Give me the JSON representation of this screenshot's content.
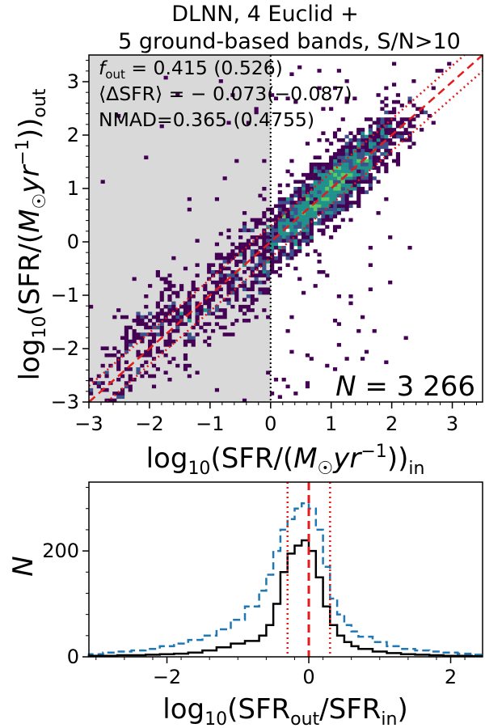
{
  "chart_data": [
    {
      "type": "heatmap",
      "title_line1": "DLNN, 4 Euclid +",
      "title_line2": "5 ground-based bands, S/N>10",
      "xlabel": "log₁₀(SFR/(M☉yr⁻¹))ᵢₙ",
      "ylabel": "log₁₀(SFR/(M☉yr⁻¹))ₒᵤₜ",
      "xlim": [
        -3,
        3.5
      ],
      "ylim": [
        -3,
        3.5
      ],
      "xticks": [
        -3,
        -2,
        -1,
        0,
        1,
        2,
        3
      ],
      "yticks": [
        -3,
        -2,
        -1,
        0,
        1,
        2,
        3
      ],
      "xtick_labels": [
        "−3",
        "−2",
        "−1",
        "0",
        "1",
        "2",
        "3"
      ],
      "ytick_labels": [
        "−3",
        "−2",
        "−1",
        "0",
        "1",
        "2",
        "3"
      ],
      "shaded_region": {
        "x_from": -3,
        "x_to": 0,
        "color": "#d9d9d9"
      },
      "vertical_dotted_line_x": 0,
      "one_to_one_line": {
        "color": "#e41a1c",
        "style": "dashed"
      },
      "outlier_bounds": {
        "offset": 0.3,
        "color": "#e41a1c",
        "style": "dotted"
      },
      "stats": {
        "f_out_label": "f",
        "f_out_sub": "out",
        "f_out_value": " = 0.415 (0.526)",
        "mean_label": "⟨ΔSFR⟩ = − 0.073(−0.087)",
        "nmad_label": "NMAD=0.365 (0.4755)"
      },
      "n_label": "N",
      "n_value": " = 3 266",
      "colormap": [
        "#440154",
        "#3b528b",
        "#21918c",
        "#5ec962",
        "#fde725"
      ]
    },
    {
      "type": "histogram",
      "xlabel": "log₁₀(SFRₒᵤₜ/SFRᵢₙ)",
      "ylabel": "N",
      "xlim": [
        -3.1,
        2.45
      ],
      "ylim": [
        0,
        330
      ],
      "xticks": [
        -2,
        0,
        2
      ],
      "xtick_labels": [
        "−2",
        "0",
        "2"
      ],
      "yticks": [
        0,
        200
      ],
      "ytick_labels": [
        "0",
        "200"
      ],
      "bin_edges": [
        -3.1,
        -2.9,
        -2.7,
        -2.5,
        -2.3,
        -2.1,
        -1.9,
        -1.7,
        -1.5,
        -1.3,
        -1.1,
        -0.9,
        -0.7,
        -0.6,
        -0.5,
        -0.4,
        -0.3,
        -0.2,
        -0.1,
        0.0,
        0.1,
        0.2,
        0.3,
        0.4,
        0.5,
        0.6,
        0.7,
        0.9,
        1.1,
        1.3,
        1.5,
        1.7,
        1.9,
        2.1,
        2.3,
        2.45
      ],
      "series": [
        {
          "name": "blue dashed",
          "color": "#1f77b4",
          "style": "dashed",
          "values": [
            5,
            8,
            10,
            12,
            15,
            20,
            25,
            32,
            40,
            52,
            70,
            95,
            125,
            155,
            200,
            240,
            260,
            280,
            290,
            280,
            240,
            170,
            110,
            80,
            60,
            48,
            38,
            28,
            20,
            15,
            12,
            10,
            8,
            6,
            4
          ]
        },
        {
          "name": "black solid",
          "color": "#000000",
          "style": "solid",
          "values": [
            2,
            2,
            3,
            3,
            4,
            5,
            6,
            8,
            12,
            18,
            25,
            30,
            40,
            60,
            100,
            160,
            195,
            210,
            220,
            200,
            150,
            95,
            60,
            40,
            28,
            20,
            15,
            10,
            7,
            5,
            4,
            3,
            2,
            2,
            1
          ]
        }
      ],
      "center_line": {
        "x": 0,
        "color": "#e41a1c",
        "style": "dashed"
      },
      "bound_lines": {
        "x": [
          -0.3,
          0.3
        ],
        "color": "#e41a1c",
        "style": "dotted"
      }
    }
  ]
}
